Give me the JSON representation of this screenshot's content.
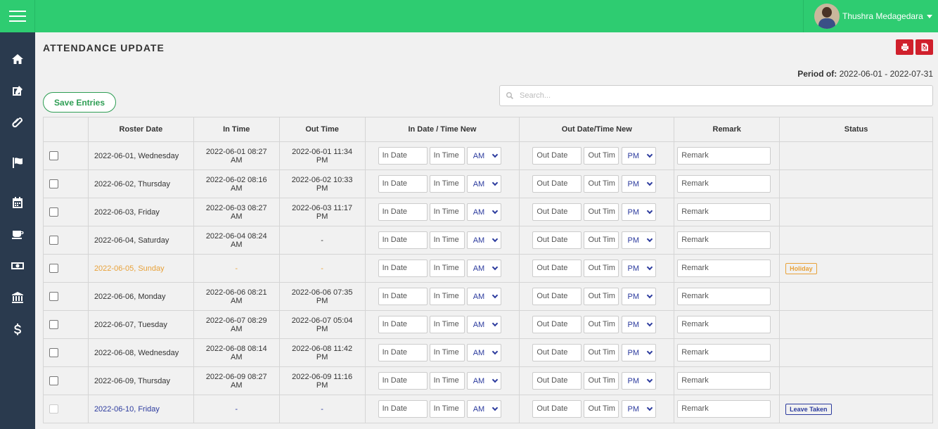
{
  "header": {
    "user_name": "Thushra Medagedara"
  },
  "page": {
    "title": "ATTENDANCE UPDATE",
    "period_label": "Period of:",
    "period_value": "2022-06-01 - 2022-07-31",
    "save_label": "Save Entries",
    "search_placeholder": "Search..."
  },
  "table": {
    "headers": {
      "roster_date": "Roster Date",
      "in_time": "In Time",
      "out_time": "Out Time",
      "in_new": "In Date / Time New",
      "out_new": "Out Date/Time New",
      "remark": "Remark",
      "status": "Status"
    },
    "placeholders": {
      "in_date": "In Date",
      "in_time": "In Time",
      "out_date": "Out Date",
      "out_time": "Out Tim",
      "remark": "Remark"
    },
    "rows": [
      {
        "date": "2022-06-01, Wednesday",
        "in": "2022-06-01 08:27 AM",
        "out": "2022-06-01 11:34 PM",
        "in_ampm": "AM",
        "out_ampm": "PM",
        "status": "",
        "type": "normal"
      },
      {
        "date": "2022-06-02, Thursday",
        "in": "2022-06-02 08:16 AM",
        "out": "2022-06-02 10:33 PM",
        "in_ampm": "AM",
        "out_ampm": "PM",
        "status": "",
        "type": "normal"
      },
      {
        "date": "2022-06-03, Friday",
        "in": "2022-06-03 08:27 AM",
        "out": "2022-06-03 11:17 PM",
        "in_ampm": "AM",
        "out_ampm": "PM",
        "status": "",
        "type": "normal"
      },
      {
        "date": "2022-06-04, Saturday",
        "in": "2022-06-04 08:24 AM",
        "out": "-",
        "in_ampm": "AM",
        "out_ampm": "PM",
        "status": "",
        "type": "normal"
      },
      {
        "date": "2022-06-05, Sunday",
        "in": "-",
        "out": "-",
        "in_ampm": "AM",
        "out_ampm": "PM",
        "status": "Holiday",
        "type": "holiday"
      },
      {
        "date": "2022-06-06, Monday",
        "in": "2022-06-06 08:21 AM",
        "out": "2022-06-06 07:35 PM",
        "in_ampm": "AM",
        "out_ampm": "PM",
        "status": "",
        "type": "normal"
      },
      {
        "date": "2022-06-07, Tuesday",
        "in": "2022-06-07 08:29 AM",
        "out": "2022-06-07 05:04 PM",
        "in_ampm": "AM",
        "out_ampm": "PM",
        "status": "",
        "type": "normal"
      },
      {
        "date": "2022-06-08, Wednesday",
        "in": "2022-06-08 08:14 AM",
        "out": "2022-06-08 11:42 PM",
        "in_ampm": "AM",
        "out_ampm": "PM",
        "status": "",
        "type": "normal"
      },
      {
        "date": "2022-06-09, Thursday",
        "in": "2022-06-09 08:27 AM",
        "out": "2022-06-09 11:16 PM",
        "in_ampm": "AM",
        "out_ampm": "PM",
        "status": "",
        "type": "normal"
      },
      {
        "date": "2022-06-10, Friday",
        "in": "-",
        "out": "-",
        "in_ampm": "AM",
        "out_ampm": "PM",
        "status": "Leave Taken",
        "type": "leave"
      }
    ]
  },
  "sidebar": {
    "icons": [
      "home-icon",
      "edit-icon",
      "paperclip-icon",
      "flag-icon",
      "calendar-icon",
      "coffee-icon",
      "money-icon",
      "bank-icon",
      "dollar-icon"
    ]
  },
  "colors": {
    "topbar": "#2ecc71",
    "sidebar": "#2a3a4e",
    "holiday": "#e8a23a",
    "leave": "#2c3b9e",
    "toolbar_buttons": "#d0202c"
  }
}
